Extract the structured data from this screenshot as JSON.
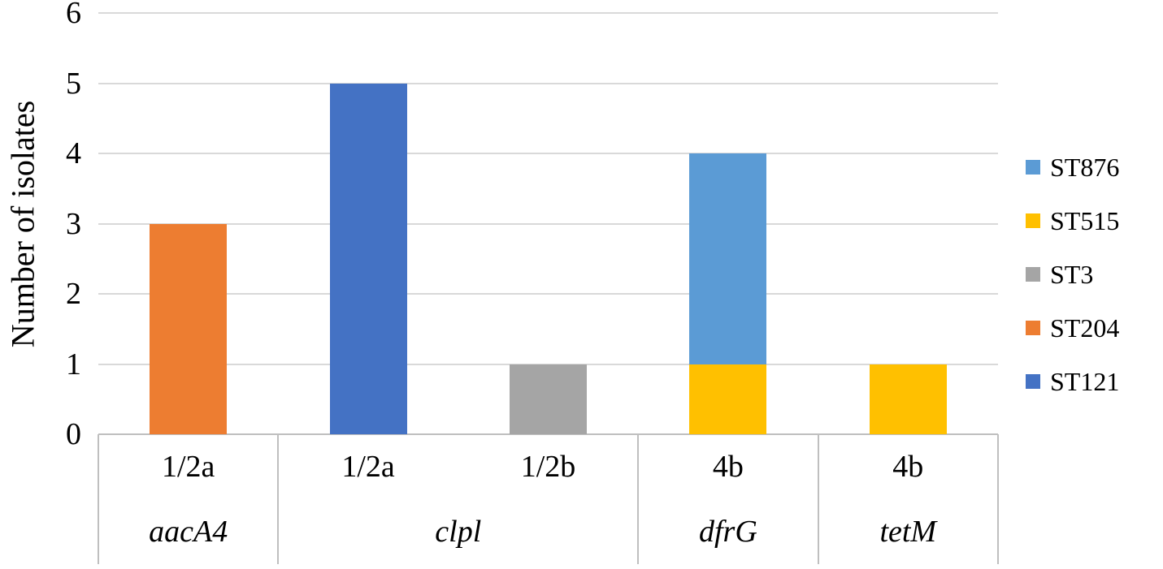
{
  "chart_data": {
    "type": "bar",
    "stacked": true,
    "title": "",
    "xlabel": "",
    "ylabel": "Number of isolates",
    "ylim": [
      0,
      6
    ],
    "yticks": [
      0,
      1,
      2,
      3,
      4,
      5,
      6
    ],
    "grid": true,
    "legend_position": "right",
    "legend": [
      {
        "name": "ST876",
        "color": "#5B9BD5"
      },
      {
        "name": "ST515",
        "color": "#FFC000"
      },
      {
        "name": "ST3",
        "color": "#A5A5A5"
      },
      {
        "name": "ST204",
        "color": "#ED7D31"
      },
      {
        "name": "ST121",
        "color": "#4472C4"
      }
    ],
    "groups": [
      {
        "gene": "aacA4",
        "categories": [
          {
            "label": "1/2a",
            "segments": [
              {
                "series": "ST204",
                "value": 3
              }
            ]
          }
        ]
      },
      {
        "gene": "clpl",
        "categories": [
          {
            "label": "1/2a",
            "segments": [
              {
                "series": "ST121",
                "value": 5
              }
            ]
          },
          {
            "label": "1/2b",
            "segments": [
              {
                "series": "ST3",
                "value": 1
              }
            ]
          }
        ]
      },
      {
        "gene": "dfrG",
        "categories": [
          {
            "label": "4b",
            "segments": [
              {
                "series": "ST515",
                "value": 1
              },
              {
                "series": "ST876",
                "value": 3
              }
            ]
          }
        ]
      },
      {
        "gene": "tetM",
        "categories": [
          {
            "label": "4b",
            "segments": [
              {
                "series": "ST515",
                "value": 1
              }
            ]
          }
        ]
      }
    ]
  }
}
